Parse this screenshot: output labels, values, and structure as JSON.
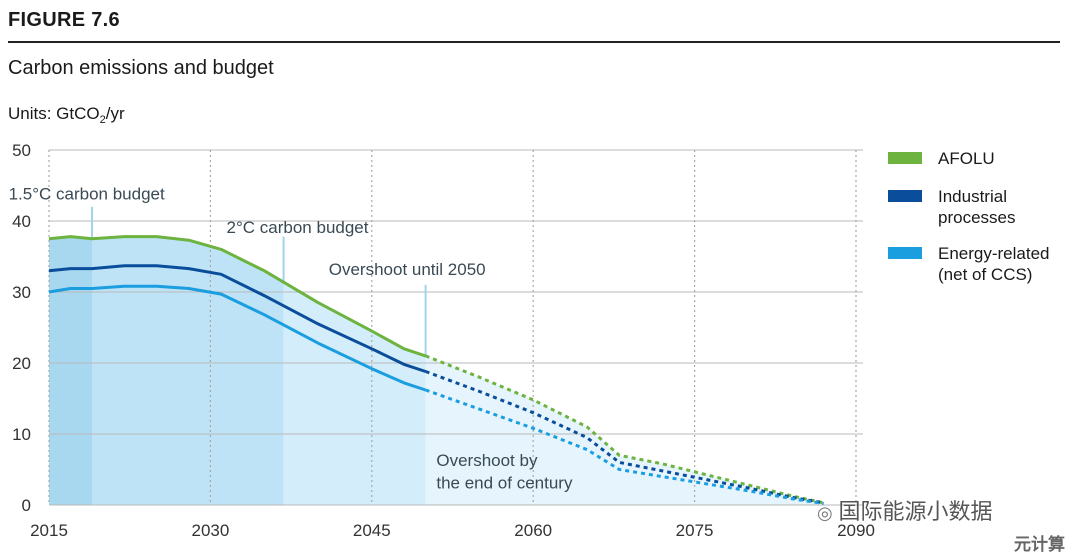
{
  "figure_label": "FIGURE 7.6",
  "title": "Carbon emissions and budget",
  "units": {
    "prefix": "Units: GtCO",
    "sub": "2",
    "suffix": "/yr"
  },
  "legend": [
    {
      "label": "AFOLU",
      "color": "#6cb33f"
    },
    {
      "label": "Industrial processes",
      "color": "#0a4e9b"
    },
    {
      "label": "Energy-related (net of CCS)",
      "color": "#1a9ee0"
    }
  ],
  "watermark": "国际能源小数据",
  "watermark2": "元计算",
  "chart_data": {
    "type": "area",
    "title": "Carbon emissions and budget",
    "ylabel": "Units: GtCO2/yr",
    "xlim": [
      2015,
      2093
    ],
    "ylim": [
      0,
      50
    ],
    "x_ticks": [
      2015,
      2030,
      2045,
      2060,
      2075,
      2090
    ],
    "y_ticks": [
      0,
      10,
      20,
      30,
      40,
      50
    ],
    "grid": {
      "horizontal": true,
      "vertical_dotted": true
    },
    "solid_until": 2050,
    "series": [
      {
        "name": "AFOLU",
        "color": "#6cb33f",
        "x": [
          2015,
          2017,
          2019,
          2022,
          2025,
          2028,
          2031,
          2035,
          2040,
          2045,
          2048,
          2050,
          2055,
          2060,
          2065,
          2068,
          2072,
          2076,
          2080,
          2084,
          2087
        ],
        "y": [
          37.5,
          37.8,
          37.5,
          37.8,
          37.8,
          37.3,
          36.0,
          33.0,
          28.5,
          24.5,
          22.0,
          21.0,
          18.0,
          14.8,
          11.0,
          7.0,
          5.8,
          4.3,
          2.8,
          1.3,
          0.3
        ]
      },
      {
        "name": "Industrial processes",
        "color": "#0a4e9b",
        "x": [
          2015,
          2017,
          2019,
          2022,
          2025,
          2028,
          2031,
          2035,
          2040,
          2045,
          2048,
          2050,
          2055,
          2060,
          2065,
          2068,
          2072,
          2076,
          2080,
          2084,
          2087
        ],
        "y": [
          33.0,
          33.3,
          33.3,
          33.7,
          33.7,
          33.3,
          32.5,
          29.5,
          25.5,
          22.0,
          19.8,
          18.8,
          16.0,
          13.0,
          9.5,
          6.0,
          4.8,
          3.6,
          2.4,
          1.1,
          0.3
        ]
      },
      {
        "name": "Energy-related (net of CCS)",
        "color": "#1a9ee0",
        "x": [
          2015,
          2017,
          2019,
          2022,
          2025,
          2028,
          2031,
          2035,
          2040,
          2045,
          2048,
          2050,
          2055,
          2060,
          2065,
          2068,
          2072,
          2076,
          2080,
          2084,
          2087
        ],
        "y": [
          30.0,
          30.5,
          30.5,
          30.8,
          30.8,
          30.5,
          29.7,
          26.8,
          22.8,
          19.2,
          17.2,
          16.2,
          13.5,
          10.8,
          7.8,
          5.0,
          4.0,
          3.0,
          2.0,
          0.9,
          0.2
        ]
      }
    ],
    "budget_bands": [
      {
        "label": "1.5°C carbon budget",
        "from": 2015,
        "to": 2019.0,
        "color": "#a8d8f0",
        "label_y": 42.5
      },
      {
        "label": "2°C carbon budget",
        "from": 2019.0,
        "to": 2036.8,
        "color": "#bfe3f6",
        "label_y": 38.0
      },
      {
        "label": "Overshoot until 2050",
        "from": 2036.8,
        "to": 2050.0,
        "color": "#d4edfa",
        "label_y": 32.0
      },
      {
        "label": "Overshoot by the end of century",
        "from": 2050.0,
        "to": 2087,
        "color": "#e6f5fd"
      }
    ],
    "annotations": [
      {
        "text": "1.5°C carbon budget",
        "x": 2018.5,
        "y": 43.0,
        "anchor": "middle"
      },
      {
        "text": "2°C carbon budget",
        "x": 2031.5,
        "y": 38.3,
        "anchor": "start"
      },
      {
        "text": "Overshoot until 2050",
        "x": 2041.0,
        "y": 32.4,
        "anchor": "start"
      },
      {
        "text": "Overshoot by",
        "x": 2051.0,
        "y": 5.5,
        "anchor": "start"
      },
      {
        "text": "the end of century",
        "x": 2051.0,
        "y": 2.3,
        "anchor": "start"
      }
    ]
  }
}
